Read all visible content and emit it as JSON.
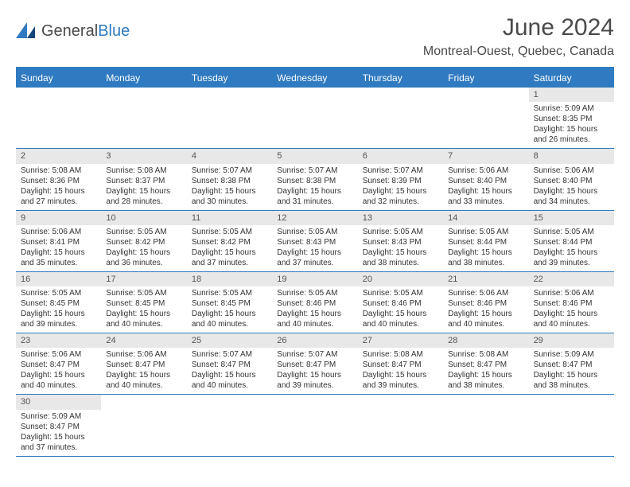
{
  "logo": {
    "text1": "General",
    "text2": "Blue"
  },
  "title": "June 2024",
  "location": "Montreal-Ouest, Quebec, Canada",
  "weekdays": [
    "Sunday",
    "Monday",
    "Tuesday",
    "Wednesday",
    "Thursday",
    "Friday",
    "Saturday"
  ],
  "styling": {
    "header_bg": "#2f7ac0",
    "header_text": "#ffffff",
    "daynum_bg": "#e8e8e8",
    "border_color": "#2f7ac0",
    "body_font_size": 10,
    "weekday_font_size": 12,
    "title_font_size": 30,
    "location_font_size": 16
  },
  "weeks": [
    [
      {
        "day": "",
        "sunrise": "",
        "sunset": "",
        "daylight": ""
      },
      {
        "day": "",
        "sunrise": "",
        "sunset": "",
        "daylight": ""
      },
      {
        "day": "",
        "sunrise": "",
        "sunset": "",
        "daylight": ""
      },
      {
        "day": "",
        "sunrise": "",
        "sunset": "",
        "daylight": ""
      },
      {
        "day": "",
        "sunrise": "",
        "sunset": "",
        "daylight": ""
      },
      {
        "day": "",
        "sunrise": "",
        "sunset": "",
        "daylight": ""
      },
      {
        "day": "1",
        "sunrise": "Sunrise: 5:09 AM",
        "sunset": "Sunset: 8:35 PM",
        "daylight": "Daylight: 15 hours and 26 minutes."
      }
    ],
    [
      {
        "day": "2",
        "sunrise": "Sunrise: 5:08 AM",
        "sunset": "Sunset: 8:36 PM",
        "daylight": "Daylight: 15 hours and 27 minutes."
      },
      {
        "day": "3",
        "sunrise": "Sunrise: 5:08 AM",
        "sunset": "Sunset: 8:37 PM",
        "daylight": "Daylight: 15 hours and 28 minutes."
      },
      {
        "day": "4",
        "sunrise": "Sunrise: 5:07 AM",
        "sunset": "Sunset: 8:38 PM",
        "daylight": "Daylight: 15 hours and 30 minutes."
      },
      {
        "day": "5",
        "sunrise": "Sunrise: 5:07 AM",
        "sunset": "Sunset: 8:38 PM",
        "daylight": "Daylight: 15 hours and 31 minutes."
      },
      {
        "day": "6",
        "sunrise": "Sunrise: 5:07 AM",
        "sunset": "Sunset: 8:39 PM",
        "daylight": "Daylight: 15 hours and 32 minutes."
      },
      {
        "day": "7",
        "sunrise": "Sunrise: 5:06 AM",
        "sunset": "Sunset: 8:40 PM",
        "daylight": "Daylight: 15 hours and 33 minutes."
      },
      {
        "day": "8",
        "sunrise": "Sunrise: 5:06 AM",
        "sunset": "Sunset: 8:40 PM",
        "daylight": "Daylight: 15 hours and 34 minutes."
      }
    ],
    [
      {
        "day": "9",
        "sunrise": "Sunrise: 5:06 AM",
        "sunset": "Sunset: 8:41 PM",
        "daylight": "Daylight: 15 hours and 35 minutes."
      },
      {
        "day": "10",
        "sunrise": "Sunrise: 5:05 AM",
        "sunset": "Sunset: 8:42 PM",
        "daylight": "Daylight: 15 hours and 36 minutes."
      },
      {
        "day": "11",
        "sunrise": "Sunrise: 5:05 AM",
        "sunset": "Sunset: 8:42 PM",
        "daylight": "Daylight: 15 hours and 37 minutes."
      },
      {
        "day": "12",
        "sunrise": "Sunrise: 5:05 AM",
        "sunset": "Sunset: 8:43 PM",
        "daylight": "Daylight: 15 hours and 37 minutes."
      },
      {
        "day": "13",
        "sunrise": "Sunrise: 5:05 AM",
        "sunset": "Sunset: 8:43 PM",
        "daylight": "Daylight: 15 hours and 38 minutes."
      },
      {
        "day": "14",
        "sunrise": "Sunrise: 5:05 AM",
        "sunset": "Sunset: 8:44 PM",
        "daylight": "Daylight: 15 hours and 38 minutes."
      },
      {
        "day": "15",
        "sunrise": "Sunrise: 5:05 AM",
        "sunset": "Sunset: 8:44 PM",
        "daylight": "Daylight: 15 hours and 39 minutes."
      }
    ],
    [
      {
        "day": "16",
        "sunrise": "Sunrise: 5:05 AM",
        "sunset": "Sunset: 8:45 PM",
        "daylight": "Daylight: 15 hours and 39 minutes."
      },
      {
        "day": "17",
        "sunrise": "Sunrise: 5:05 AM",
        "sunset": "Sunset: 8:45 PM",
        "daylight": "Daylight: 15 hours and 40 minutes."
      },
      {
        "day": "18",
        "sunrise": "Sunrise: 5:05 AM",
        "sunset": "Sunset: 8:45 PM",
        "daylight": "Daylight: 15 hours and 40 minutes."
      },
      {
        "day": "19",
        "sunrise": "Sunrise: 5:05 AM",
        "sunset": "Sunset: 8:46 PM",
        "daylight": "Daylight: 15 hours and 40 minutes."
      },
      {
        "day": "20",
        "sunrise": "Sunrise: 5:05 AM",
        "sunset": "Sunset: 8:46 PM",
        "daylight": "Daylight: 15 hours and 40 minutes."
      },
      {
        "day": "21",
        "sunrise": "Sunrise: 5:06 AM",
        "sunset": "Sunset: 8:46 PM",
        "daylight": "Daylight: 15 hours and 40 minutes."
      },
      {
        "day": "22",
        "sunrise": "Sunrise: 5:06 AM",
        "sunset": "Sunset: 8:46 PM",
        "daylight": "Daylight: 15 hours and 40 minutes."
      }
    ],
    [
      {
        "day": "23",
        "sunrise": "Sunrise: 5:06 AM",
        "sunset": "Sunset: 8:47 PM",
        "daylight": "Daylight: 15 hours and 40 minutes."
      },
      {
        "day": "24",
        "sunrise": "Sunrise: 5:06 AM",
        "sunset": "Sunset: 8:47 PM",
        "daylight": "Daylight: 15 hours and 40 minutes."
      },
      {
        "day": "25",
        "sunrise": "Sunrise: 5:07 AM",
        "sunset": "Sunset: 8:47 PM",
        "daylight": "Daylight: 15 hours and 40 minutes."
      },
      {
        "day": "26",
        "sunrise": "Sunrise: 5:07 AM",
        "sunset": "Sunset: 8:47 PM",
        "daylight": "Daylight: 15 hours and 39 minutes."
      },
      {
        "day": "27",
        "sunrise": "Sunrise: 5:08 AM",
        "sunset": "Sunset: 8:47 PM",
        "daylight": "Daylight: 15 hours and 39 minutes."
      },
      {
        "day": "28",
        "sunrise": "Sunrise: 5:08 AM",
        "sunset": "Sunset: 8:47 PM",
        "daylight": "Daylight: 15 hours and 38 minutes."
      },
      {
        "day": "29",
        "sunrise": "Sunrise: 5:09 AM",
        "sunset": "Sunset: 8:47 PM",
        "daylight": "Daylight: 15 hours and 38 minutes."
      }
    ],
    [
      {
        "day": "30",
        "sunrise": "Sunrise: 5:09 AM",
        "sunset": "Sunset: 8:47 PM",
        "daylight": "Daylight: 15 hours and 37 minutes."
      },
      {
        "day": "",
        "sunrise": "",
        "sunset": "",
        "daylight": ""
      },
      {
        "day": "",
        "sunrise": "",
        "sunset": "",
        "daylight": ""
      },
      {
        "day": "",
        "sunrise": "",
        "sunset": "",
        "daylight": ""
      },
      {
        "day": "",
        "sunrise": "",
        "sunset": "",
        "daylight": ""
      },
      {
        "day": "",
        "sunrise": "",
        "sunset": "",
        "daylight": ""
      },
      {
        "day": "",
        "sunrise": "",
        "sunset": "",
        "daylight": ""
      }
    ]
  ]
}
